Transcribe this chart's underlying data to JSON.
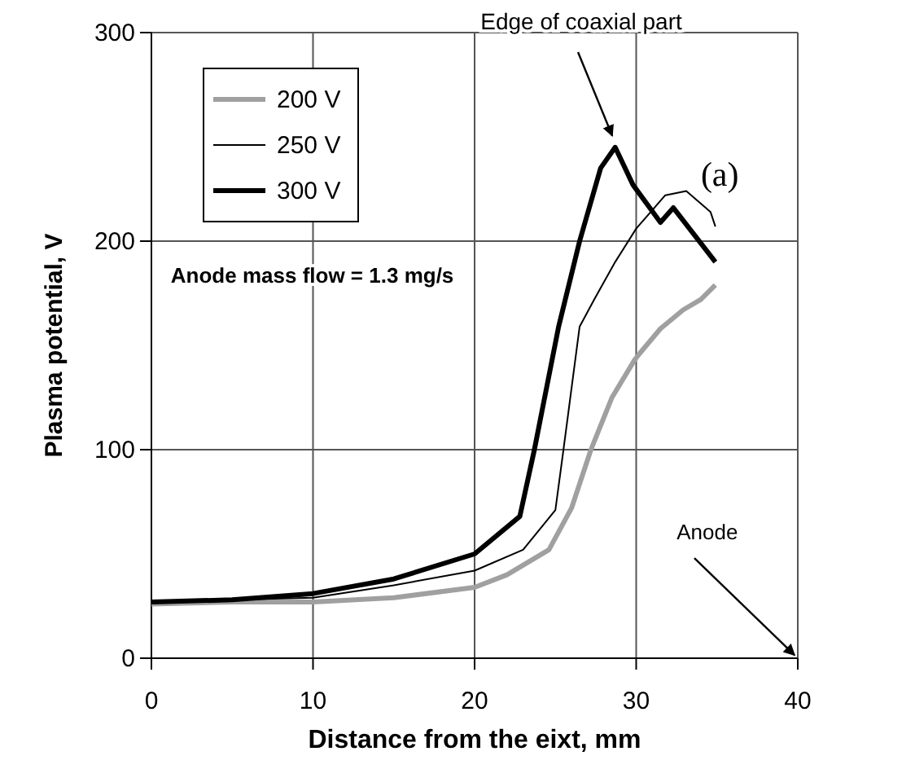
{
  "chart_data": {
    "type": "line",
    "xlabel": "Distance from the eixt, mm",
    "ylabel": "Plasma potential, V",
    "xlim": [
      0,
      40
    ],
    "xticks": [
      0,
      10,
      20,
      30,
      40
    ],
    "ylim": [
      0,
      300
    ],
    "yticks": [
      0,
      100,
      200,
      300
    ],
    "grid": true,
    "legend": "top left",
    "line_style": "solid",
    "marker": "none",
    "series": [
      {
        "name": "200 V",
        "color": "#a0a0a0",
        "x": [
          0,
          5,
          10,
          15,
          20,
          22,
          24.6,
          26,
          27.2,
          28.5,
          29.9,
          30.2,
          31.5,
          32.9,
          34,
          34.9
        ],
        "values": [
          26,
          27,
          27,
          29,
          34,
          40,
          52,
          72,
          100,
          125,
          143,
          146,
          158,
          167,
          172,
          179
        ]
      },
      {
        "name": "250 V",
        "color": "#000000",
        "x": [
          0,
          5,
          10,
          15,
          20,
          23,
          25,
          25.5,
          26.5,
          27.4,
          28.7,
          30,
          31.8,
          33.1,
          34.6,
          34.9
        ],
        "values": [
          27,
          28,
          29,
          35,
          42,
          52,
          71,
          100,
          159,
          172,
          190,
          206,
          222,
          224,
          214,
          207
        ]
      },
      {
        "name": "300 V",
        "color": "#000000",
        "x": [
          0,
          5,
          10,
          15,
          20,
          22.8,
          23.7,
          25.2,
          26.5,
          27.8,
          28.7,
          29.8,
          31.5,
          32.3,
          34.1,
          34.9
        ],
        "values": [
          27,
          28,
          31,
          38,
          50,
          68,
          100,
          159,
          200,
          235,
          245,
          227,
          209,
          216,
          198,
          190
        ]
      }
    ],
    "annotations": [
      "Edge of coaxial part",
      "Anode",
      "(a)",
      "Anode mass flow = 1.3 mg/s"
    ]
  }
}
